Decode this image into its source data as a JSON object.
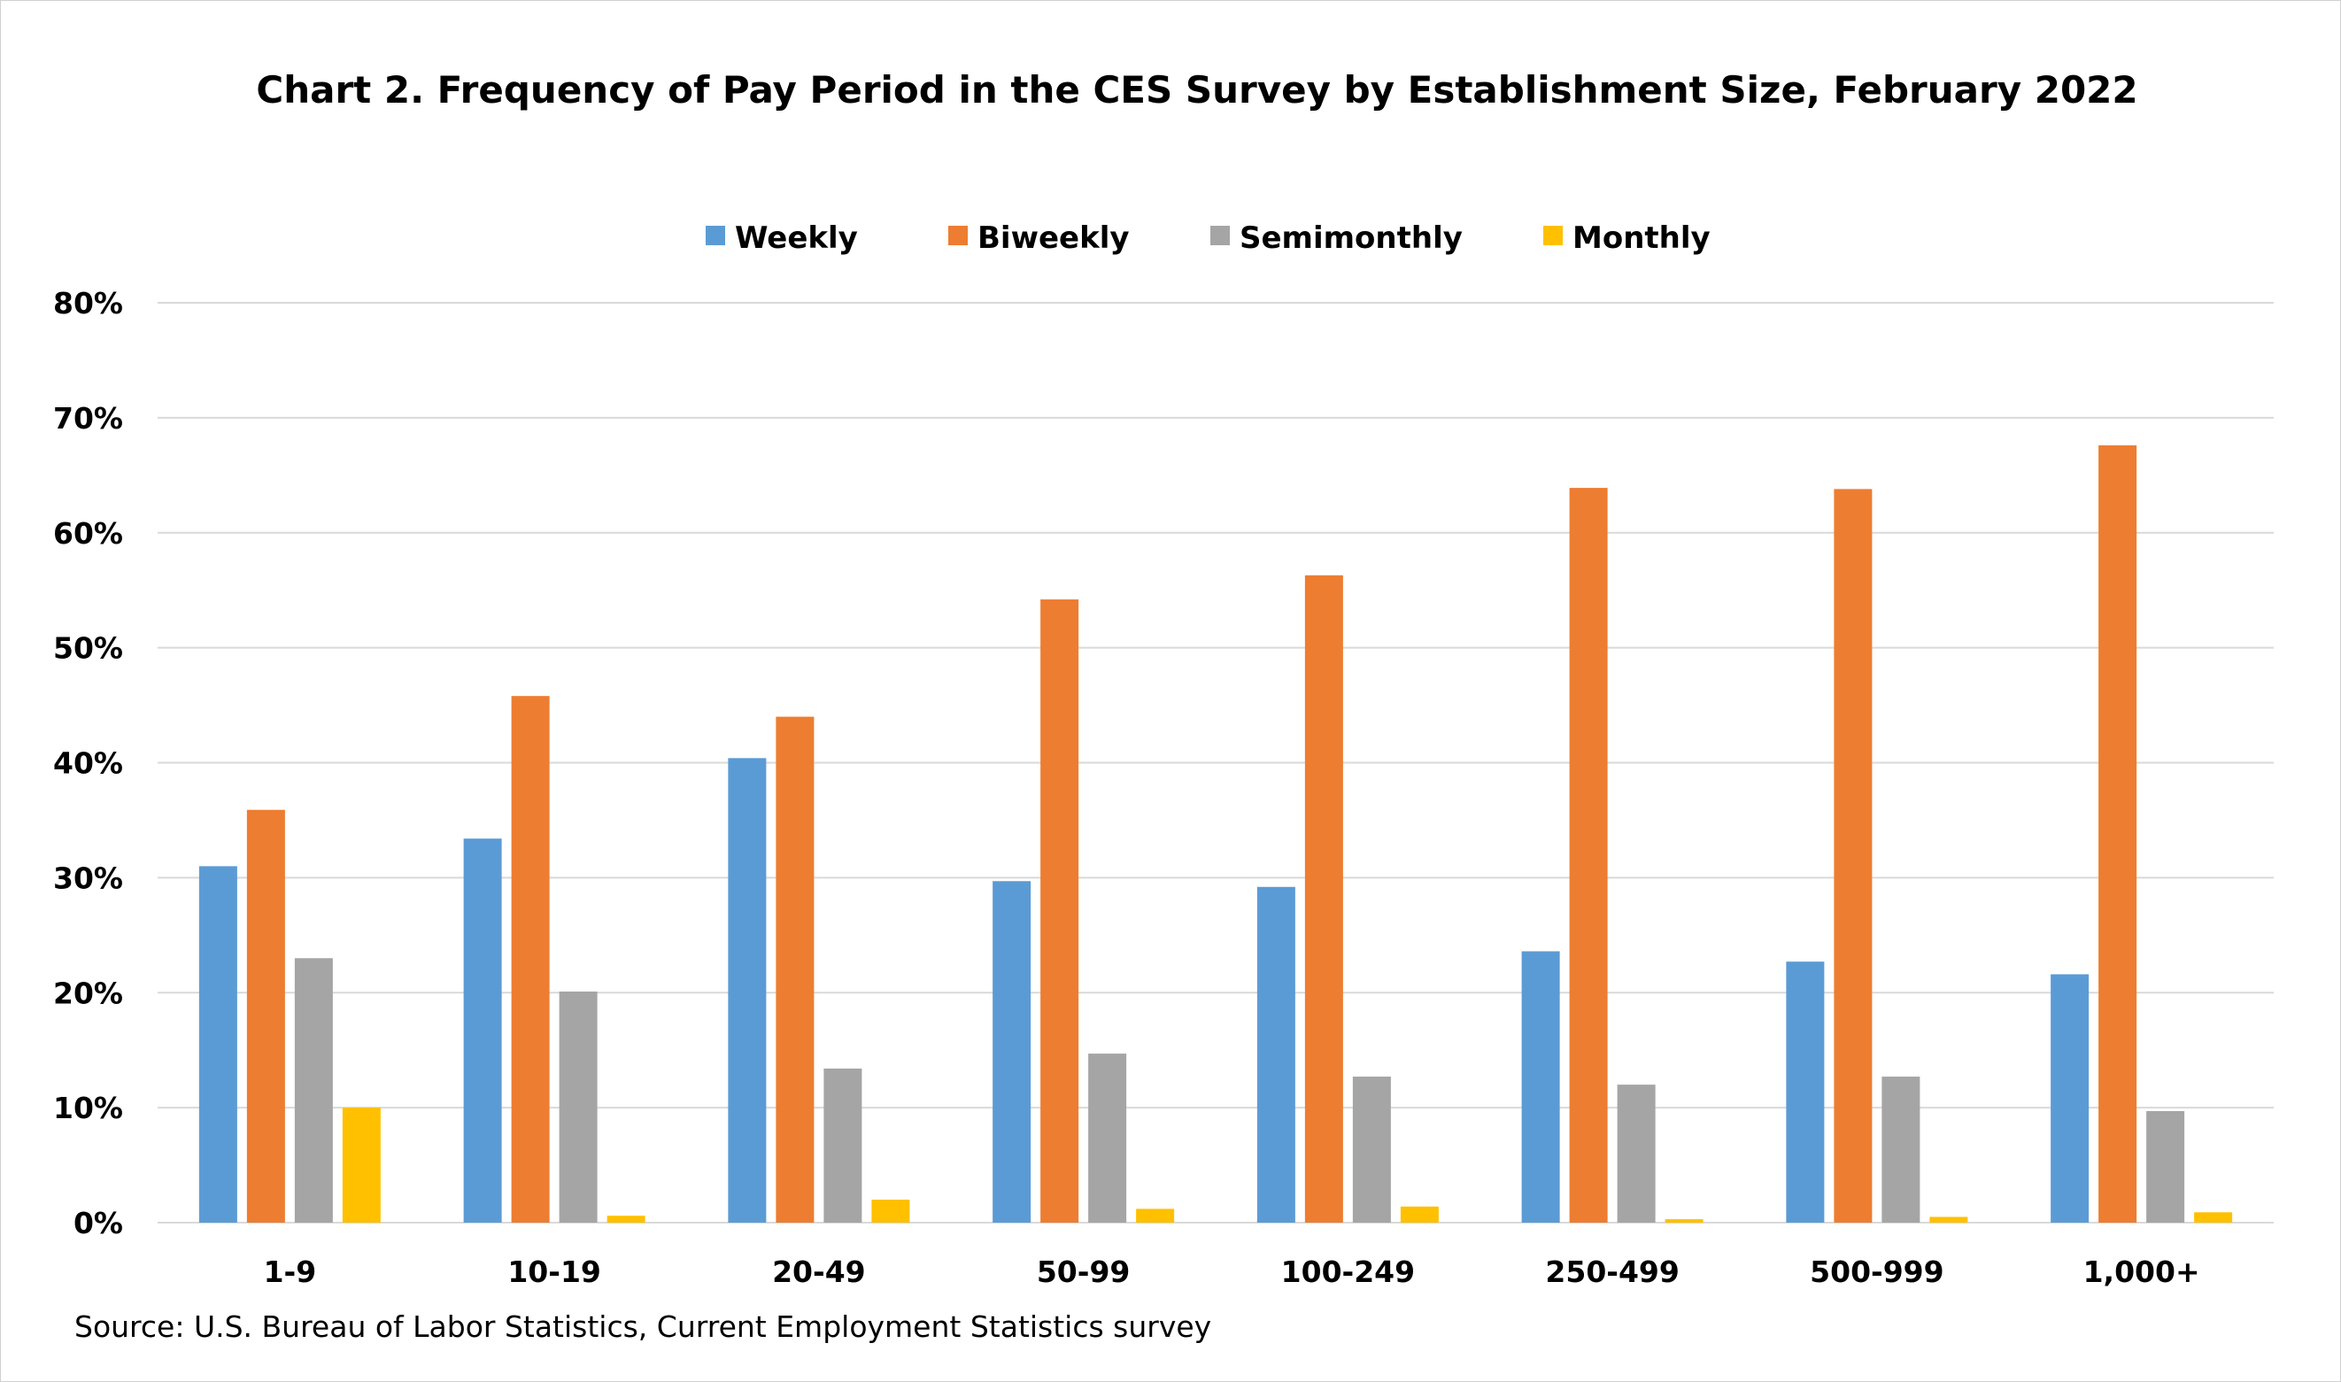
{
  "chart_data": {
    "type": "bar",
    "title": "Chart 2. Frequency of Pay Period in the CES Survey by Establishment Size, February 2022",
    "xlabel": "",
    "ylabel": "",
    "categories": [
      "1-9",
      "10-19",
      "20-49",
      "50-99",
      "100-249",
      "250-499",
      "500-999",
      "1,000+"
    ],
    "series": [
      {
        "name": "Weekly",
        "color": "#5B9BD5",
        "values": [
          31.0,
          33.4,
          40.4,
          29.7,
          29.2,
          23.6,
          22.7,
          21.6
        ]
      },
      {
        "name": "Biweekly",
        "color": "#ED7D31",
        "values": [
          35.9,
          45.8,
          44.0,
          54.2,
          56.3,
          63.9,
          63.8,
          67.6
        ]
      },
      {
        "name": "Semimonthly",
        "color": "#A5A5A5",
        "values": [
          23.0,
          20.1,
          13.4,
          14.7,
          12.7,
          12.0,
          12.7,
          9.7
        ]
      },
      {
        "name": "Monthly",
        "color": "#FFC000",
        "values": [
          10.0,
          0.6,
          2.0,
          1.2,
          1.4,
          0.3,
          0.5,
          0.9
        ]
      }
    ],
    "ylim": [
      0,
      80
    ],
    "yticks": [
      "0%",
      "10%",
      "20%",
      "30%",
      "40%",
      "50%",
      "60%",
      "70%",
      "80%"
    ],
    "grid": true,
    "legend_position": "top"
  },
  "source": "Source: U.S. Bureau of Labor Statistics, Current Employment Statistics survey"
}
